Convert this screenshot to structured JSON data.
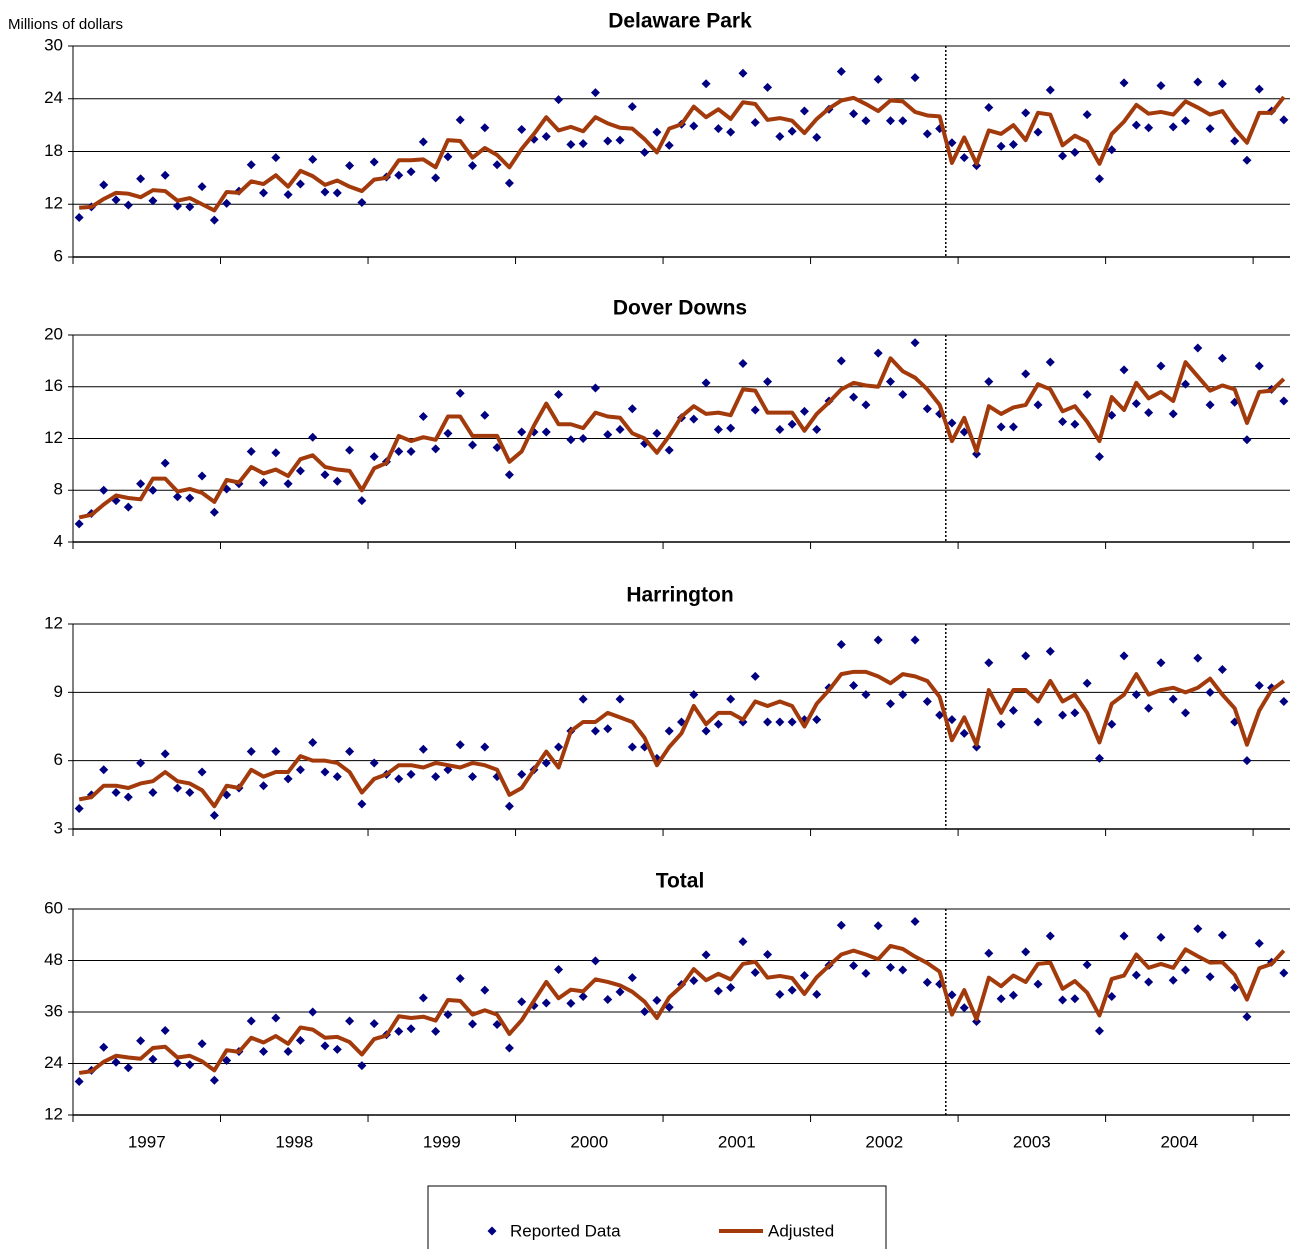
{
  "chart_data": [
    {
      "type": "line",
      "title": "Delaware Park",
      "ylabel": "Millions of dollars",
      "ylim": [
        6,
        30
      ],
      "yticks": [
        6,
        12,
        18,
        24,
        30
      ],
      "grid": true,
      "legend": "bottom",
      "series": [
        {
          "name": "Reported Data",
          "style": "markers",
          "color": "#000080",
          "values": [
            10.5,
            11.7,
            14.2,
            12.5,
            11.9,
            14.9,
            12.4,
            15.3,
            11.8,
            11.7,
            14.0,
            10.2,
            12.1,
            13.5,
            16.5,
            13.3,
            17.3,
            13.1,
            14.3,
            17.1,
            13.4,
            13.3,
            16.4,
            12.2,
            16.8,
            15.1,
            15.3,
            15.7,
            19.1,
            15.0,
            17.4,
            21.6,
            16.4,
            20.7,
            16.5,
            14.4,
            20.5,
            19.4,
            19.7,
            23.9,
            18.8,
            18.9,
            24.7,
            19.2,
            19.3,
            23.1,
            17.9,
            20.2,
            18.7,
            21.1,
            20.9,
            25.7,
            20.6,
            20.2,
            26.9,
            21.3,
            25.3,
            19.7,
            20.3,
            22.6,
            19.6,
            22.8,
            27.1,
            22.3,
            21.5,
            26.2,
            21.5,
            21.5,
            26.4,
            20.0,
            20.6,
            19.0,
            17.3,
            16.4,
            23.0,
            18.6,
            18.8,
            22.4,
            20.2,
            25.0,
            17.5,
            17.9,
            22.2,
            14.9,
            18.2,
            25.8,
            21.0,
            20.7,
            25.5,
            20.8,
            21.5,
            25.9,
            20.6,
            25.7,
            19.2,
            17.0,
            25.1,
            22.6,
            21.6
          ]
        },
        {
          "name": "Adjusted",
          "style": "line",
          "color": "#A33A0B",
          "values": [
            11.6,
            11.7,
            12.6,
            13.3,
            13.2,
            12.8,
            13.6,
            13.5,
            12.4,
            12.7,
            12.0,
            11.3,
            13.4,
            13.3,
            14.6,
            14.3,
            15.3,
            14.0,
            15.8,
            15.2,
            14.2,
            14.7,
            14.0,
            13.5,
            14.8,
            15.0,
            17.0,
            17.0,
            17.1,
            16.2,
            19.3,
            19.2,
            17.3,
            18.4,
            17.6,
            16.2,
            18.3,
            20.0,
            21.9,
            20.4,
            20.8,
            20.3,
            21.9,
            21.2,
            20.7,
            20.6,
            19.4,
            17.9,
            20.6,
            21.1,
            23.1,
            21.9,
            22.8,
            21.7,
            23.6,
            23.4,
            21.6,
            21.8,
            21.5,
            20.1,
            21.7,
            22.9,
            23.8,
            24.1,
            23.4,
            22.6,
            23.8,
            23.7,
            22.5,
            22.1,
            22.0,
            16.7,
            19.6,
            16.6,
            20.4,
            20.0,
            21.0,
            19.3,
            22.4,
            22.2,
            18.7,
            19.8,
            19.1,
            16.6,
            20.0,
            21.4,
            23.3,
            22.3,
            22.5,
            22.2,
            23.7,
            23.0,
            22.2,
            22.6,
            20.6,
            19.0,
            22.4,
            22.4,
            24.2
          ]
        }
      ]
    },
    {
      "type": "line",
      "title": "Dover Downs",
      "ylim": [
        4,
        20
      ],
      "yticks": [
        4,
        8,
        12,
        16,
        20
      ],
      "grid": true,
      "series": [
        {
          "name": "Reported Data",
          "style": "markers",
          "color": "#000080",
          "values": [
            5.4,
            6.2,
            8.0,
            7.2,
            6.7,
            8.5,
            8.0,
            10.1,
            7.5,
            7.4,
            9.1,
            6.3,
            8.1,
            8.5,
            11.0,
            8.6,
            10.9,
            8.5,
            9.5,
            12.1,
            9.2,
            8.7,
            11.1,
            7.2,
            10.6,
            10.2,
            11.0,
            11.0,
            13.7,
            11.2,
            12.4,
            15.5,
            11.5,
            13.8,
            11.3,
            9.2,
            12.5,
            12.5,
            12.5,
            15.4,
            11.9,
            12.0,
            15.9,
            12.3,
            12.7,
            14.3,
            11.6,
            12.4,
            11.1,
            13.6,
            13.5,
            16.3,
            12.7,
            12.8,
            17.8,
            14.2,
            16.4,
            12.7,
            13.1,
            14.1,
            12.7,
            14.9,
            18.0,
            15.2,
            14.6,
            18.6,
            16.4,
            15.4,
            19.4,
            14.3,
            13.9,
            13.2,
            12.5,
            10.8,
            16.4,
            12.9,
            12.9,
            17.0,
            14.6,
            17.9,
            13.3,
            13.1,
            15.4,
            10.6,
            13.8,
            17.3,
            14.7,
            14.0,
            17.6,
            13.9,
            16.2,
            19.0,
            14.6,
            18.2,
            14.8,
            11.9,
            17.6,
            15.8,
            14.9
          ]
        },
        {
          "name": "Adjusted",
          "style": "line",
          "color": "#A33A0B",
          "values": [
            5.9,
            6.1,
            6.9,
            7.6,
            7.4,
            7.3,
            8.9,
            8.9,
            7.9,
            8.1,
            7.8,
            7.1,
            8.8,
            8.6,
            9.8,
            9.3,
            9.6,
            9.1,
            10.4,
            10.7,
            9.8,
            9.6,
            9.5,
            8.0,
            9.7,
            10.1,
            12.2,
            11.8,
            12.1,
            11.9,
            13.7,
            13.7,
            12.2,
            12.2,
            12.2,
            10.2,
            11.0,
            13.0,
            14.7,
            13.1,
            13.1,
            12.8,
            14.0,
            13.7,
            13.6,
            12.4,
            12.0,
            10.9,
            12.2,
            13.7,
            14.5,
            13.9,
            14.0,
            13.8,
            15.8,
            15.7,
            14.0,
            14.0,
            14.0,
            12.6,
            13.9,
            14.8,
            15.8,
            16.3,
            16.1,
            16.0,
            18.2,
            17.2,
            16.7,
            15.8,
            14.6,
            11.8,
            13.6,
            11.0,
            14.5,
            13.9,
            14.4,
            14.6,
            16.2,
            15.8,
            14.1,
            14.5,
            13.3,
            11.8,
            15.2,
            14.2,
            16.3,
            15.1,
            15.6,
            14.9,
            17.9,
            16.8,
            15.7,
            16.1,
            15.8,
            13.2,
            15.6,
            15.7,
            16.6
          ]
        }
      ]
    },
    {
      "type": "line",
      "title": "Harrington",
      "ylim": [
        3,
        12
      ],
      "yticks": [
        3,
        6,
        9,
        12
      ],
      "grid": true,
      "series": [
        {
          "name": "Reported Data",
          "style": "markers",
          "color": "#000080",
          "values": [
            3.9,
            4.5,
            5.6,
            4.6,
            4.4,
            5.9,
            4.6,
            6.3,
            4.8,
            4.6,
            5.5,
            3.6,
            4.5,
            4.8,
            6.4,
            4.9,
            6.4,
            5.2,
            5.6,
            6.8,
            5.5,
            5.3,
            6.4,
            4.1,
            5.9,
            5.4,
            5.2,
            5.4,
            6.5,
            5.3,
            5.6,
            6.7,
            5.3,
            6.6,
            5.3,
            4.0,
            5.4,
            5.6,
            5.9,
            6.6,
            7.3,
            8.7,
            7.3,
            7.4,
            8.7,
            6.6,
            6.6,
            6.1,
            7.3,
            7.7,
            8.9,
            7.3,
            7.6,
            8.7,
            7.7,
            9.7,
            7.7,
            7.7,
            7.7,
            7.8,
            7.8,
            9.2,
            11.1,
            9.3,
            8.9,
            11.3,
            8.5,
            8.9,
            11.3,
            8.6,
            8.0,
            7.8,
            7.2,
            6.6,
            10.3,
            7.6,
            8.2,
            10.6,
            7.7,
            10.8,
            8.0,
            8.1,
            9.4,
            6.1,
            7.6,
            10.6,
            8.9,
            8.3,
            10.3,
            8.7,
            8.1,
            10.5,
            9.0,
            10.0,
            7.7,
            6.0,
            9.3,
            9.2,
            8.6
          ]
        },
        {
          "name": "Adjusted",
          "style": "line",
          "color": "#A33A0B",
          "values": [
            4.3,
            4.4,
            4.9,
            4.9,
            4.8,
            5.0,
            5.1,
            5.5,
            5.1,
            5.0,
            4.7,
            4.0,
            4.9,
            4.8,
            5.6,
            5.3,
            5.5,
            5.5,
            6.2,
            6.0,
            6.0,
            5.9,
            5.5,
            4.6,
            5.2,
            5.4,
            5.8,
            5.8,
            5.7,
            5.9,
            5.8,
            5.7,
            5.9,
            5.8,
            5.6,
            4.5,
            4.8,
            5.6,
            6.4,
            5.7,
            7.3,
            7.7,
            7.7,
            8.1,
            7.9,
            7.7,
            7.0,
            5.8,
            6.6,
            7.2,
            8.4,
            7.6,
            8.1,
            8.1,
            7.8,
            8.6,
            8.4,
            8.6,
            8.4,
            7.5,
            8.5,
            9.1,
            9.8,
            9.9,
            9.9,
            9.7,
            9.4,
            9.8,
            9.7,
            9.5,
            8.8,
            6.9,
            7.9,
            6.7,
            9.1,
            8.1,
            9.1,
            9.1,
            8.6,
            9.5,
            8.6,
            8.9,
            8.1,
            6.8,
            8.5,
            8.9,
            9.8,
            8.9,
            9.1,
            9.2,
            9.0,
            9.2,
            9.6,
            8.9,
            8.3,
            6.7,
            8.2,
            9.1,
            9.5
          ]
        }
      ]
    },
    {
      "type": "line",
      "title": "Total",
      "ylim": [
        12,
        60
      ],
      "yticks": [
        12,
        24,
        36,
        48,
        60
      ],
      "grid": true,
      "categories": [
        null,
        null,
        null,
        null,
        null,
        null,
        "1997",
        null,
        null,
        null,
        null,
        null,
        null,
        null,
        null,
        null,
        null,
        null,
        "1998",
        null,
        null,
        null,
        null,
        null,
        null,
        null,
        null,
        null,
        null,
        null,
        "1999",
        null,
        null,
        null,
        null,
        null,
        null,
        null,
        null,
        null,
        null,
        null,
        "2000",
        null,
        null,
        null,
        null,
        null,
        null,
        null,
        null,
        null,
        null,
        null,
        "2001",
        null,
        null,
        null,
        null,
        null,
        null,
        null,
        null,
        null,
        null,
        null,
        "2002",
        null,
        null,
        null,
        null,
        null,
        null,
        null,
        null,
        null,
        null,
        null,
        "2003",
        null,
        null,
        null,
        null,
        null,
        null,
        null,
        null,
        null,
        null,
        null,
        "2004",
        null,
        null,
        null,
        null,
        null,
        null,
        null,
        null
      ],
      "series": [
        {
          "name": "Reported Data",
          "style": "markers",
          "color": "#000080",
          "values": [
            19.8,
            22.4,
            27.8,
            24.3,
            23.0,
            29.3,
            25.0,
            31.7,
            24.1,
            23.7,
            28.6,
            20.1,
            24.7,
            26.8,
            33.9,
            26.8,
            34.6,
            26.8,
            29.4,
            36.0,
            28.1,
            27.3,
            33.9,
            23.5,
            33.3,
            30.7,
            31.5,
            32.1,
            39.3,
            31.5,
            35.4,
            43.8,
            33.2,
            41.1,
            33.1,
            27.6,
            38.4,
            37.5,
            38.1,
            45.9,
            38.0,
            39.6,
            47.9,
            38.9,
            40.7,
            44.0,
            36.1,
            38.7,
            37.1,
            42.4,
            43.3,
            49.3,
            40.9,
            41.7,
            52.4,
            45.2,
            49.4,
            40.1,
            41.1,
            44.5,
            40.1,
            46.9,
            56.2,
            46.8,
            45.0,
            56.1,
            46.4,
            45.8,
            57.1,
            42.9,
            42.5,
            40.0,
            37.0,
            33.8,
            49.7,
            39.1,
            39.9,
            50.0,
            42.5,
            53.7,
            38.8,
            39.1,
            47.0,
            31.6,
            39.6,
            53.7,
            44.6,
            43.0,
            53.4,
            43.4,
            45.8,
            55.4,
            44.2,
            53.9,
            41.7,
            34.9,
            52.0,
            47.6,
            45.1
          ]
        },
        {
          "name": "Adjusted",
          "style": "line",
          "color": "#A33A0B",
          "values": [
            21.8,
            22.2,
            24.4,
            25.8,
            25.4,
            25.1,
            27.6,
            27.9,
            25.4,
            25.8,
            24.5,
            22.4,
            27.1,
            26.7,
            30.0,
            28.9,
            30.4,
            28.6,
            32.4,
            31.9,
            30.0,
            30.2,
            29.0,
            26.1,
            29.7,
            30.5,
            35.0,
            34.6,
            34.9,
            34.0,
            38.8,
            38.6,
            35.4,
            36.4,
            35.4,
            30.9,
            34.1,
            38.6,
            43.0,
            39.2,
            41.2,
            40.8,
            43.6,
            43.0,
            42.2,
            40.7,
            38.4,
            34.6,
            39.4,
            42.0,
            46.0,
            43.4,
            44.9,
            43.6,
            47.2,
            47.7,
            44.0,
            44.4,
            43.9,
            40.2,
            44.1,
            46.8,
            49.4,
            50.3,
            49.4,
            48.3,
            51.4,
            50.7,
            48.9,
            47.4,
            45.4,
            35.4,
            41.1,
            34.3,
            44.0,
            42.0,
            44.5,
            43.0,
            47.2,
            47.5,
            41.4,
            43.2,
            40.5,
            35.2,
            43.7,
            44.5,
            49.4,
            46.3,
            47.2,
            46.3,
            50.6,
            49.0,
            47.5,
            47.6,
            44.7,
            38.9,
            46.2,
            47.2,
            50.3
          ]
        }
      ]
    }
  ]
}
